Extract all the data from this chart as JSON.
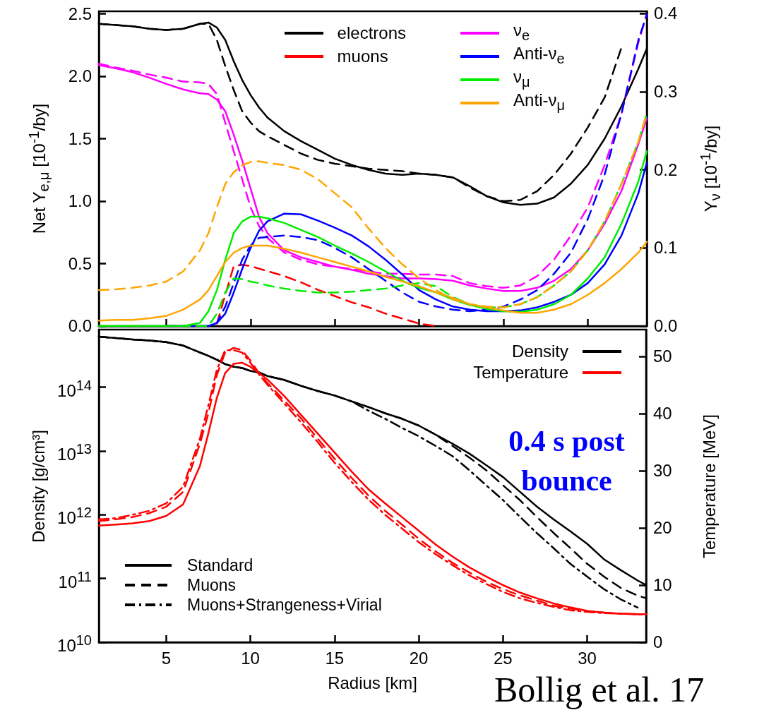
{
  "chart_data": [
    {
      "type": "line",
      "ylabel": "Net Y$_{e,μ}$ [10$^{-1}$/by]",
      "y2label": "Y$_{ν}$ [10$^{-1}$/by]",
      "x": [
        1,
        2,
        3,
        4,
        5,
        6,
        7,
        7.5,
        8,
        8.5,
        9,
        9.5,
        10,
        10.5,
        11,
        12,
        13,
        14,
        15,
        16,
        17,
        18,
        19,
        20,
        21,
        22,
        23,
        24,
        25,
        26,
        27,
        28,
        29,
        30,
        31,
        32,
        33,
        33.5
      ],
      "xlim": [
        1,
        33.5
      ],
      "xticks": [
        5,
        10,
        15,
        20,
        25,
        30
      ],
      "ylim": [
        0,
        2.52
      ],
      "yticks": [
        {
          "value": 0,
          "label": "0.0"
        },
        0.5,
        {
          "value": 1,
          "label": "1.0"
        },
        1.5,
        {
          "value": 2,
          "label": "2.0"
        },
        2.5
      ],
      "y2lim": [
        0,
        0.403
      ],
      "y2ticks": [
        {
          "value": 0,
          "label": "0.0"
        },
        0.1,
        0.2,
        0.3,
        0.4
      ],
      "tick_labels": "y",
      "legend": "top right",
      "series": [
        {
          "name": "electrons",
          "color": "#000000",
          "line_style": "solid",
          "values": [
            2.42,
            2.41,
            2.4,
            2.38,
            2.37,
            2.38,
            2.42,
            2.43,
            2.39,
            2.29,
            2.12,
            1.97,
            1.85,
            1.75,
            1.67,
            1.56,
            1.48,
            1.41,
            1.34,
            1.29,
            1.25,
            1.22,
            1.21,
            1.22,
            1.21,
            1.19,
            1.12,
            1.04,
            0.99,
            0.97,
            0.98,
            1.03,
            1.14,
            1.29,
            1.5,
            1.76,
            2.06,
            2.22
          ]
        },
        {
          "color": "#000000",
          "line_style": "dashed",
          "values": [
            2.42,
            2.41,
            2.4,
            2.38,
            2.37,
            2.38,
            2.42,
            2.42,
            2.29,
            2.08,
            1.89,
            1.72,
            1.63,
            1.56,
            1.52,
            1.45,
            1.38,
            1.33,
            1.3,
            1.28,
            1.26,
            1.25,
            1.24,
            1.22,
            1.21,
            1.19,
            1.11,
            1.04,
            1.0,
            1.01,
            1.08,
            1.21,
            1.38,
            1.59,
            1.83,
            2.23,
            null,
            null
          ]
        },
        {
          "name": "muons",
          "color": "#ff0000",
          "line_style": "dashed",
          "values": [
            null,
            null,
            null,
            null,
            null,
            null,
            null,
            null,
            0.02,
            0.25,
            0.48,
            0.49,
            0.48,
            0.46,
            0.44,
            0.4,
            0.35,
            0.29,
            0.24,
            0.19,
            0.15,
            0.1,
            0.06,
            0.02,
            0.0,
            null,
            null,
            null,
            null,
            null,
            null,
            null,
            null,
            null,
            null,
            null,
            null,
            null
          ]
        },
        {
          "name": "ν$_{e}$",
          "color": "#ff00ff",
          "line_style": "solid",
          "axis": "y2",
          "values": [
            0.334,
            0.33,
            0.325,
            0.318,
            0.31,
            0.303,
            0.298,
            0.297,
            0.29,
            0.275,
            0.245,
            0.212,
            0.176,
            0.14,
            0.119,
            0.097,
            0.088,
            0.082,
            0.076,
            0.072,
            0.067,
            0.064,
            0.061,
            0.061,
            0.06,
            0.058,
            0.052,
            0.048,
            0.045,
            0.045,
            0.049,
            0.058,
            0.073,
            0.097,
            0.131,
            0.173,
            0.233,
            0.266
          ]
        },
        {
          "color": "#ff00ff",
          "line_style": "dashed",
          "axis": "y2",
          "values": [
            0.336,
            0.331,
            0.327,
            0.322,
            0.318,
            0.313,
            0.312,
            0.31,
            0.297,
            0.26,
            0.224,
            0.188,
            0.152,
            0.128,
            0.113,
            0.094,
            0.085,
            0.079,
            0.076,
            0.073,
            0.07,
            0.067,
            0.067,
            0.066,
            0.066,
            0.064,
            0.055,
            0.051,
            0.049,
            0.052,
            0.064,
            0.085,
            0.116,
            0.152,
            0.206,
            0.272,
            0.363,
            0.399
          ]
        },
        {
          "name": "Anti-ν$_{e}$",
          "color": "#0000ff",
          "line_style": "solid",
          "axis": "y2",
          "values": [
            null,
            null,
            null,
            null,
            0,
            0,
            0,
            0,
            0.004,
            0.016,
            0.043,
            0.073,
            0.1,
            0.122,
            0.134,
            0.144,
            0.143,
            0.135,
            0.126,
            0.116,
            0.102,
            0.085,
            0.066,
            0.046,
            0.034,
            0.025,
            0.021,
            0.019,
            0.019,
            0.02,
            0.024,
            0.031,
            0.04,
            0.055,
            0.079,
            0.116,
            0.17,
            0.209
          ]
        },
        {
          "color": "#0000ff",
          "line_style": "dashed",
          "axis": "y2",
          "values": [
            null,
            null,
            null,
            null,
            0,
            0,
            0,
            0,
            0.004,
            0.025,
            0.055,
            0.085,
            0.103,
            0.113,
            0.114,
            0.116,
            0.114,
            0.11,
            0.1,
            0.088,
            0.073,
            0.058,
            0.043,
            0.031,
            0.025,
            0.021,
            0.019,
            0.021,
            0.025,
            0.034,
            0.046,
            0.067,
            0.094,
            0.137,
            0.194,
            0.272,
            0.366,
            0.399
          ]
        },
        {
          "name": "ν$_{μ}$",
          "color": "#00ee00",
          "line_style": "solid",
          "axis": "y2",
          "values": [
            0,
            0,
            0,
            0,
            0,
            0,
            0.004,
            0.019,
            0.046,
            0.085,
            0.119,
            0.134,
            0.14,
            0.14,
            0.138,
            0.132,
            0.123,
            0.114,
            0.103,
            0.093,
            0.082,
            0.07,
            0.058,
            0.049,
            0.043,
            0.034,
            0.027,
            0.022,
            0.019,
            0.018,
            0.021,
            0.028,
            0.04,
            0.061,
            0.088,
            0.131,
            0.185,
            0.224
          ]
        },
        {
          "color": "#00ee00",
          "line_style": "dashed",
          "axis": "y2",
          "values": [
            0,
            0,
            0,
            0,
            0,
            0,
            0,
            0,
            0.016,
            0.043,
            0.061,
            0.06,
            0.057,
            0.055,
            0.052,
            0.048,
            0.045,
            0.043,
            0.043,
            0.044,
            0.046,
            0.048,
            0.052,
            0.055,
            0.051,
            0.037,
            0.028,
            0.024,
            0.024,
            0.028,
            0.037,
            0.052,
            0.07,
            0.097,
            0.134,
            0.182,
            0.236,
            0.272
          ]
        },
        {
          "name": "Anti-ν$_{μ}$",
          "color": "#ffa500",
          "line_style": "solid",
          "axis": "y2",
          "values": [
            0.007,
            0.008,
            0.008,
            0.01,
            0.013,
            0.021,
            0.034,
            0.046,
            0.064,
            0.082,
            0.094,
            0.1,
            0.103,
            0.103,
            0.103,
            0.099,
            0.094,
            0.088,
            0.082,
            0.076,
            0.07,
            0.063,
            0.057,
            0.051,
            0.043,
            0.036,
            0.028,
            0.024,
            0.02,
            0.017,
            0.017,
            0.021,
            0.028,
            0.04,
            0.055,
            0.073,
            0.094,
            0.108
          ]
        },
        {
          "color": "#ffa500",
          "line_style": "dashed",
          "axis": "y2",
          "values": [
            0.046,
            0.047,
            0.049,
            0.052,
            0.057,
            0.07,
            0.097,
            0.119,
            0.152,
            0.182,
            0.197,
            0.206,
            0.21,
            0.211,
            0.209,
            0.206,
            0.2,
            0.188,
            0.17,
            0.152,
            0.125,
            0.1,
            0.079,
            0.061,
            0.046,
            0.034,
            0.028,
            0.025,
            0.024,
            0.028,
            0.037,
            0.052,
            0.07,
            0.097,
            0.134,
            0.182,
            0.236,
            0.272
          ]
        }
      ]
    },
    {
      "type": "line",
      "xlabel": "Radius [km]",
      "ylabel": "Density [g/cm³]",
      "y2label": "Temperature [MeV]",
      "x": [
        1,
        2,
        3,
        4,
        5,
        6,
        7,
        7.5,
        8,
        8.5,
        9,
        9.5,
        10,
        10.5,
        11,
        12,
        13,
        14,
        15,
        16,
        17,
        18,
        19,
        20,
        21,
        22,
        23,
        24,
        25,
        26,
        27,
        28,
        29,
        30,
        31,
        32,
        33,
        33.5
      ],
      "xlim": [
        1,
        33.5
      ],
      "xticks": [
        5,
        10,
        15,
        20,
        25,
        30
      ],
      "log": "y",
      "ylim": [
        10000000000.0,
        800000000000000.0
      ],
      "yticks": [
        {
          "value": 10000000000.0,
          "label": "10$^{10}$"
        },
        {
          "value": 100000000000.0,
          "label": "10$^{11}$"
        },
        {
          "value": 1000000000000.0,
          "label": "10$^{12}$"
        },
        {
          "value": 10000000000000.0,
          "label": "10$^{13}$"
        },
        {
          "value": 100000000000000.0,
          "label": "10$^{14}$"
        }
      ],
      "y2lim": [
        0,
        54.7
      ],
      "y2ticks": [
        0,
        10,
        20,
        30,
        40,
        50
      ],
      "legend": "top right",
      "annotations": [
        "Standard",
        "Muons",
        "Muons+Strangeness+Virial",
        "0.4 s post bounce",
        "Bollig et al. 17"
      ],
      "series": [
        {
          "name": "Density",
          "color": "#000000",
          "line_style": "solid",
          "values": [
            620000000000000.0,
            590000000000000.0,
            560000000000000.0,
            540000000000000.0,
            510000000000000.0,
            450000000000000.0,
            350000000000000.0,
            310000000000000.0,
            270000000000000.0,
            230000000000000.0,
            210000000000000.0,
            200000000000000.0,
            180000000000000.0,
            170000000000000.0,
            150000000000000.0,
            130000000000000.0,
            105000000000000.0,
            87000000000000.0,
            74000000000000.0,
            60000000000000.0,
            49000000000000.0,
            39000000000000.0,
            32000000000000.0,
            25000000000000.0,
            18000000000000.0,
            13000000000000.0,
            9100000000000.0,
            6000000000000.0,
            3900000000000.0,
            2300000000000.0,
            1350000000000.0,
            850000000000.0,
            550000000000.0,
            350000000000.0,
            200000000000.0,
            135000000000.0,
            93000000000.0,
            79000000000.0
          ]
        },
        {
          "color": "#000000",
          "line_style": "dashed",
          "values": [
            620000000000000.0,
            590000000000000.0,
            560000000000000.0,
            540000000000000.0,
            510000000000000.0,
            450000000000000.0,
            350000000000000.0,
            310000000000000.0,
            270000000000000.0,
            230000000000000.0,
            210000000000000.0,
            200000000000000.0,
            180000000000000.0,
            170000000000000.0,
            150000000000000.0,
            130000000000000.0,
            105000000000000.0,
            87000000000000.0,
            74000000000000.0,
            60000000000000.0,
            49000000000000.0,
            39000000000000.0,
            32000000000000.0,
            25000000000000.0,
            18000000000000.0,
            12000000000000.0,
            7900000000000.0,
            5000000000000.0,
            2900000000000.0,
            1700000000000.0,
            930000000000.0,
            520000000000.0,
            300000000000.0,
            170000000000.0,
            107000000000.0,
            71000000000.0,
            54000000000.0,
            49000000000.0
          ]
        },
        {
          "color": "#000000",
          "line_style": "dashdot",
          "values": [
            620000000000000.0,
            590000000000000.0,
            560000000000000.0,
            540000000000000.0,
            510000000000000.0,
            450000000000000.0,
            350000000000000.0,
            310000000000000.0,
            270000000000000.0,
            230000000000000.0,
            210000000000000.0,
            200000000000000.0,
            180000000000000.0,
            170000000000000.0,
            150000000000000.0,
            130000000000000.0,
            105000000000000.0,
            87000000000000.0,
            74000000000000.0,
            60000000000000.0,
            43000000000000.0,
            32000000000000.0,
            23000000000000.0,
            17000000000000.0,
            12000000000000.0,
            8300000000000.0,
            5000000000000.0,
            2900000000000.0,
            1700000000000.0,
            930000000000.0,
            520000000000.0,
            300000000000.0,
            170000000000.0,
            107000000000.0,
            68000000000.0,
            47000000000.0,
            35000000000.0,
            null
          ]
        },
        {
          "name": "Temperature",
          "color": "#ff0000",
          "line_style": "solid",
          "axis": "y2",
          "values": [
            20.4,
            20.6,
            20.8,
            21.2,
            22.1,
            24.1,
            30.8,
            36.5,
            42.7,
            47.1,
            48.7,
            48.9,
            48.2,
            47.1,
            46.0,
            43.1,
            39.8,
            36.5,
            33.2,
            29.9,
            26.8,
            24.3,
            21.9,
            19.5,
            17.1,
            15.0,
            13.1,
            11.5,
            10.0,
            8.7,
            7.7,
            6.8,
            6.1,
            5.5,
            5.2,
            5.0,
            4.9,
            4.9
          ]
        },
        {
          "color": "#ff0000",
          "line_style": "dashed",
          "axis": "y2",
          "values": [
            21.2,
            21.5,
            21.9,
            22.6,
            23.7,
            26.3,
            34.7,
            40.0,
            46.7,
            50.7,
            51.5,
            51.1,
            49.3,
            47.1,
            45.4,
            42.3,
            39.2,
            35.6,
            32.1,
            28.8,
            25.7,
            23.0,
            20.6,
            18.1,
            15.9,
            13.9,
            12.2,
            10.6,
            9.3,
            8.2,
            7.3,
            6.4,
            5.9,
            5.4,
            5.2,
            5.0,
            4.9,
            4.9
          ]
        },
        {
          "color": "#ff0000",
          "line_style": "dashdot",
          "axis": "y2",
          "values": [
            21.5,
            21.7,
            22.3,
            23.0,
            24.3,
            27.2,
            35.6,
            41.4,
            47.6,
            51.1,
            51.1,
            50.7,
            48.9,
            46.9,
            45.1,
            41.8,
            38.5,
            35.0,
            31.4,
            28.1,
            25.0,
            22.3,
            19.9,
            17.5,
            15.4,
            13.5,
            11.7,
            10.2,
            8.8,
            7.7,
            6.9,
            6.2,
            5.6,
            5.3,
            5.1,
            5.0,
            4.9,
            4.9
          ]
        }
      ]
    }
  ]
}
